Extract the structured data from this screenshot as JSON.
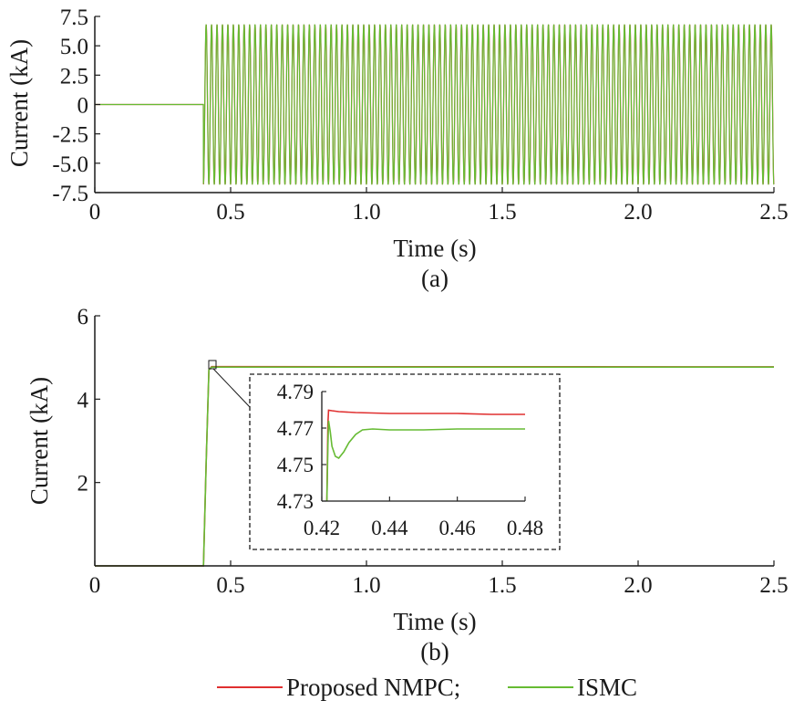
{
  "chart_data": [
    {
      "id": "a",
      "type": "line",
      "caption": "(a)",
      "xlabel": "Time (s)",
      "ylabel": "Current (kA)",
      "xlim": [
        0,
        2.5
      ],
      "ylim": [
        -7.5,
        7.5
      ],
      "xticks": [
        "0",
        "0.5",
        "1.0",
        "1.5",
        "2.0",
        "2.5"
      ],
      "xtick_values": [
        0,
        0.5,
        1.0,
        1.5,
        2.0,
        2.5
      ],
      "yticks": [
        "7.5",
        "5.0",
        "2.5",
        "0",
        "-2.5",
        "-5.0",
        "-7.5"
      ],
      "ytick_values": [
        7.5,
        5.0,
        2.5,
        0,
        -2.5,
        -5.0,
        -7.5
      ],
      "series": [
        {
          "name": "Proposed NMPC",
          "color": "#e03030",
          "shape": "sinusoid",
          "amplitude_kA": 6.8,
          "frequency_hz": 50,
          "onset_s": 0.4,
          "value_before_onset": 0
        },
        {
          "name": "ISMC",
          "color": "#66bb33",
          "shape": "sinusoid",
          "amplitude_kA": 6.8,
          "frequency_hz": 50,
          "onset_s": 0.4,
          "value_before_onset": 0
        }
      ]
    },
    {
      "id": "b",
      "type": "line",
      "caption": "(b)",
      "xlabel": "Time (s)",
      "ylabel": "Current (kA)",
      "xlim": [
        0,
        2.5
      ],
      "ylim": [
        0,
        6
      ],
      "xticks": [
        "0",
        "0.5",
        "1.0",
        "1.5",
        "2.0",
        "2.5"
      ],
      "xtick_values": [
        0,
        0.5,
        1.0,
        1.5,
        2.0,
        2.5
      ],
      "yticks": [
        "6",
        "4",
        "2"
      ],
      "ytick_values": [
        6,
        4,
        2
      ],
      "series": [
        {
          "name": "Proposed NMPC",
          "color": "#e03030",
          "x": [
            0,
            0.4,
            0.41,
            0.42,
            0.43,
            2.5
          ],
          "y": [
            0,
            0,
            2.5,
            4.7,
            4.78,
            4.775
          ]
        },
        {
          "name": "ISMC",
          "color": "#66bb33",
          "x": [
            0,
            0.4,
            0.41,
            0.42,
            0.43,
            2.5
          ],
          "y": [
            0,
            0,
            2.5,
            4.7,
            4.77,
            4.77
          ]
        }
      ],
      "inset": {
        "xlim": [
          0.42,
          0.48
        ],
        "ylim": [
          4.73,
          4.79
        ],
        "xticks": [
          "0.42",
          "0.44",
          "0.46",
          "0.48"
        ],
        "xtick_values": [
          0.42,
          0.44,
          0.46,
          0.48
        ],
        "yticks": [
          "4.79",
          "4.77",
          "4.75",
          "4.73"
        ],
        "ytick_values": [
          4.79,
          4.77,
          4.75,
          4.73
        ],
        "series": [
          {
            "name": "Proposed NMPC",
            "color": "#e03030",
            "x": [
              0.4215,
              0.4218,
              0.422,
              0.423,
              0.425,
              0.43,
              0.44,
              0.45,
              0.46,
              0.47,
              0.48
            ],
            "y": [
              4.73,
              4.772,
              4.7798,
              4.7795,
              4.779,
              4.7785,
              4.778,
              4.778,
              4.778,
              4.7775,
              4.7775
            ]
          },
          {
            "name": "ISMC",
            "color": "#66bb33",
            "x": [
              0.4215,
              0.4218,
              0.422,
              0.4225,
              0.423,
              0.424,
              0.425,
              0.4265,
              0.428,
              0.43,
              0.432,
              0.435,
              0.44,
              0.445,
              0.45,
              0.46,
              0.47,
              0.48
            ],
            "y": [
              4.73,
              4.76,
              4.774,
              4.768,
              4.76,
              4.7545,
              4.7535,
              4.757,
              4.762,
              4.7665,
              4.769,
              4.7695,
              4.769,
              4.769,
              4.769,
              4.7695,
              4.7695,
              4.7695
            ]
          }
        ]
      }
    }
  ],
  "legend": {
    "placement": "bottom-center",
    "items": [
      {
        "label": "Proposed NMPC;",
        "color": "#e03030"
      },
      {
        "label": "ISMC",
        "color": "#66bb33"
      }
    ]
  }
}
